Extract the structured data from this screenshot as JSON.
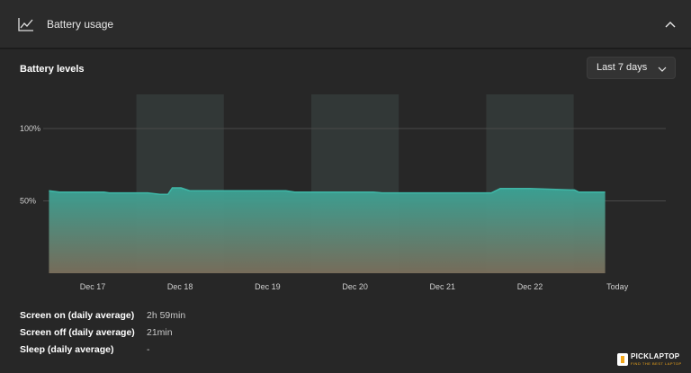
{
  "header": {
    "title": "Battery usage",
    "icon": "line-chart-icon",
    "collapse_icon": "chevron-up-icon"
  },
  "section": {
    "title": "Battery levels"
  },
  "range_select": {
    "label": "Last 7 days",
    "icon": "chevron-down-icon"
  },
  "chart_data": {
    "type": "area",
    "title": "",
    "xlabel": "",
    "ylabel": "",
    "y_ticks": [
      {
        "value": 100,
        "label": "100%"
      },
      {
        "value": 50,
        "label": "50%"
      }
    ],
    "ylim": [
      0,
      100
    ],
    "x_ticks": [
      {
        "day": 0,
        "label": "Dec 17"
      },
      {
        "day": 1,
        "label": "Dec 18"
      },
      {
        "day": 2,
        "label": "Dec 19"
      },
      {
        "day": 3,
        "label": "Dec 20"
      },
      {
        "day": 4,
        "label": "Dec 21"
      },
      {
        "day": 5,
        "label": "Dec 22"
      },
      {
        "day": 6,
        "label": "Today"
      }
    ],
    "series": [
      {
        "x": [
          -0.5,
          -0.38,
          0.13,
          0.19,
          0.63,
          0.77,
          0.86,
          0.91,
          1.01,
          1.11,
          2.21,
          2.31,
          3.21,
          3.31,
          4.16,
          4.26,
          4.56,
          4.66,
          5.0,
          5.51,
          5.56,
          5.86
        ],
        "y": [
          57,
          56,
          56,
          55.5,
          55.5,
          54.5,
          54.5,
          59,
          59,
          57,
          57,
          56,
          56,
          55.5,
          55.5,
          55.5,
          55.5,
          58.5,
          58.5,
          57.5,
          56,
          56
        ]
      }
    ],
    "highlight_days": [
      0.5,
      2.5,
      4.5
    ],
    "grid": true,
    "colors": {
      "line": "#3fb7a7",
      "fill_top": "#3aa597",
      "fill_bottom": "#7a6f5c",
      "band": "#3a4442"
    }
  },
  "stats": [
    {
      "label": "Screen on (daily average)",
      "value": "2h 59min"
    },
    {
      "label": "Screen off (daily average)",
      "value": "21min"
    },
    {
      "label": "Sleep (daily average)",
      "value": "-"
    }
  ],
  "watermark": {
    "name": "PICKLAPTOP",
    "tagline": "FIND THE BEST LAPTOP"
  }
}
